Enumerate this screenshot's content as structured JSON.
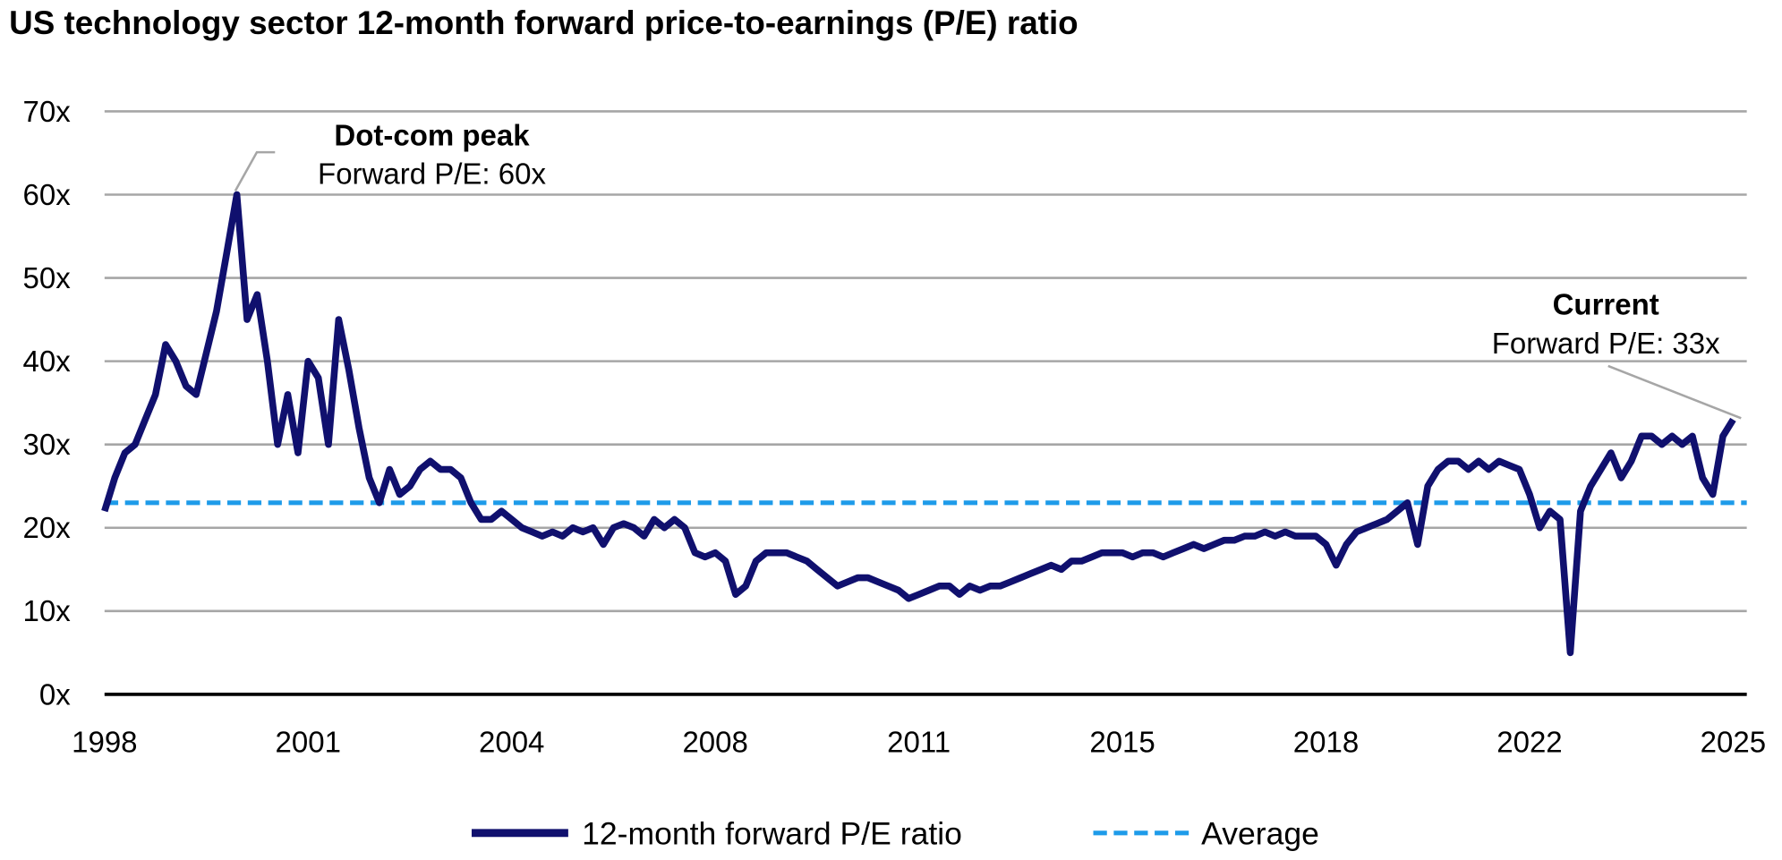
{
  "chart_data": {
    "type": "line",
    "title": "US technology sector 12-month forward price-to-earnings (P/E) ratio",
    "categories": [
      "1998",
      null,
      null,
      null,
      null,
      null,
      null,
      null,
      null,
      null,
      null,
      null,
      null,
      null,
      null,
      null,
      null,
      null,
      null,
      null,
      "2001",
      null,
      null,
      null,
      null,
      null,
      null,
      null,
      null,
      null,
      null,
      null,
      null,
      null,
      null,
      null,
      null,
      null,
      null,
      null,
      "2004",
      null,
      null,
      null,
      null,
      null,
      null,
      null,
      null,
      null,
      null,
      null,
      null,
      null,
      null,
      null,
      null,
      null,
      null,
      null,
      "2008",
      null,
      null,
      null,
      null,
      null,
      null,
      null,
      null,
      null,
      null,
      null,
      null,
      null,
      null,
      null,
      null,
      null,
      null,
      null,
      "2011",
      null,
      null,
      null,
      null,
      null,
      null,
      null,
      null,
      null,
      null,
      null,
      null,
      null,
      null,
      null,
      null,
      null,
      null,
      null,
      "2015",
      null,
      null,
      null,
      null,
      null,
      null,
      null,
      null,
      null,
      null,
      null,
      null,
      null,
      null,
      null,
      null,
      null,
      null,
      null,
      "2018",
      null,
      null,
      null,
      null,
      null,
      null,
      null,
      null,
      null,
      null,
      null,
      null,
      null,
      null,
      null,
      null,
      null,
      null,
      null,
      "2022",
      null,
      null,
      null,
      null,
      null,
      null,
      null,
      null,
      null,
      null,
      null,
      null,
      null,
      null,
      null,
      null,
      null,
      null,
      null,
      "2025"
    ],
    "series": [
      {
        "name": "12-month forward P/E ratio",
        "color": "#10106e",
        "values": [
          22,
          26,
          29,
          30,
          33,
          36,
          42,
          40,
          37,
          36,
          41,
          46,
          53,
          60,
          45,
          48,
          40,
          30,
          36,
          29,
          40,
          38,
          30,
          45,
          39,
          32,
          26,
          23,
          27,
          24,
          25,
          27,
          28,
          27,
          27,
          26,
          23,
          21,
          21,
          22,
          21,
          20,
          19.5,
          19,
          19.5,
          19,
          20,
          19.5,
          20,
          18,
          20,
          20.5,
          20,
          19,
          21,
          20,
          21,
          20,
          17,
          16.5,
          17,
          16,
          12,
          13,
          16,
          17,
          17,
          17,
          16.5,
          16,
          15,
          14,
          13,
          13.5,
          14,
          14,
          13.5,
          13,
          12.5,
          11.5,
          12,
          12.5,
          13,
          13,
          12,
          13,
          12.5,
          13,
          13,
          13.5,
          14,
          14.5,
          15,
          15.5,
          15,
          16,
          16,
          16.5,
          17,
          17,
          17,
          16.5,
          17,
          17,
          16.5,
          17,
          17.5,
          18,
          17.5,
          18,
          18.5,
          18.5,
          19,
          19,
          19.5,
          19,
          19.5,
          19,
          19,
          19,
          18,
          15.5,
          18,
          19.5,
          20,
          20.5,
          21,
          22,
          23,
          18,
          25,
          27,
          28,
          28,
          27,
          28,
          27,
          28,
          27.5,
          27,
          24,
          20,
          22,
          21,
          5,
          22,
          25,
          27,
          29,
          26,
          28,
          31,
          31,
          30,
          31,
          30,
          31,
          26,
          24,
          31,
          33
        ]
      }
    ],
    "average": {
      "name": "Average",
      "color": "#1e9be9",
      "value": 23,
      "dashed": true
    },
    "ylim": [
      0,
      70
    ],
    "yticks": [
      {
        "value": 0,
        "label": "0x"
      },
      {
        "value": 10,
        "label": "10x"
      },
      {
        "value": 20,
        "label": "20x"
      },
      {
        "value": 30,
        "label": "30x"
      },
      {
        "value": 40,
        "label": "40x"
      },
      {
        "value": 50,
        "label": "50x"
      },
      {
        "value": 60,
        "label": "60x"
      },
      {
        "value": 70,
        "label": "70x"
      }
    ],
    "grid": true,
    "annotations": [
      {
        "title": "Dot-com peak",
        "text": "Forward P/E: 60x"
      },
      {
        "title": "Current",
        "text": "Forward P/E: 33x"
      }
    ],
    "legend": "bottom"
  }
}
